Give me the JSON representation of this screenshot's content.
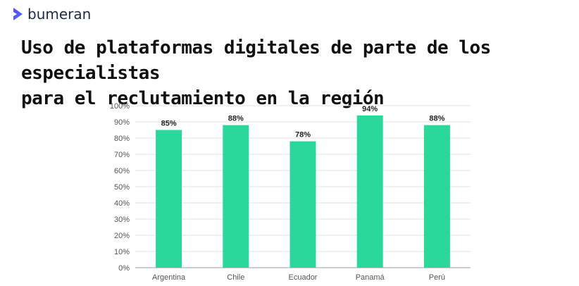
{
  "brand": {
    "name": "bumeran",
    "accent": "#4b3bff",
    "icon": "chevron-right-icon"
  },
  "title": {
    "line1": "Uso de plataformas digitales de parte de los especialistas",
    "line2": "para el reclutamiento en la región"
  },
  "chart_data": {
    "type": "bar",
    "categories": [
      "Argentina",
      "Chile",
      "Ecuador",
      "Panamá",
      "Perú"
    ],
    "values": [
      85,
      88,
      78,
      94,
      88
    ],
    "value_labels": [
      "85%",
      "88%",
      "78%",
      "94%",
      "88%"
    ],
    "yticks": [
      "0%",
      "10%",
      "20%",
      "30%",
      "40%",
      "50%",
      "60%",
      "70%",
      "80%",
      "90%",
      "100%"
    ],
    "ylim": [
      0,
      100
    ],
    "grid": true,
    "bar_color": "#2ad99a",
    "xlabel": "",
    "ylabel": ""
  }
}
